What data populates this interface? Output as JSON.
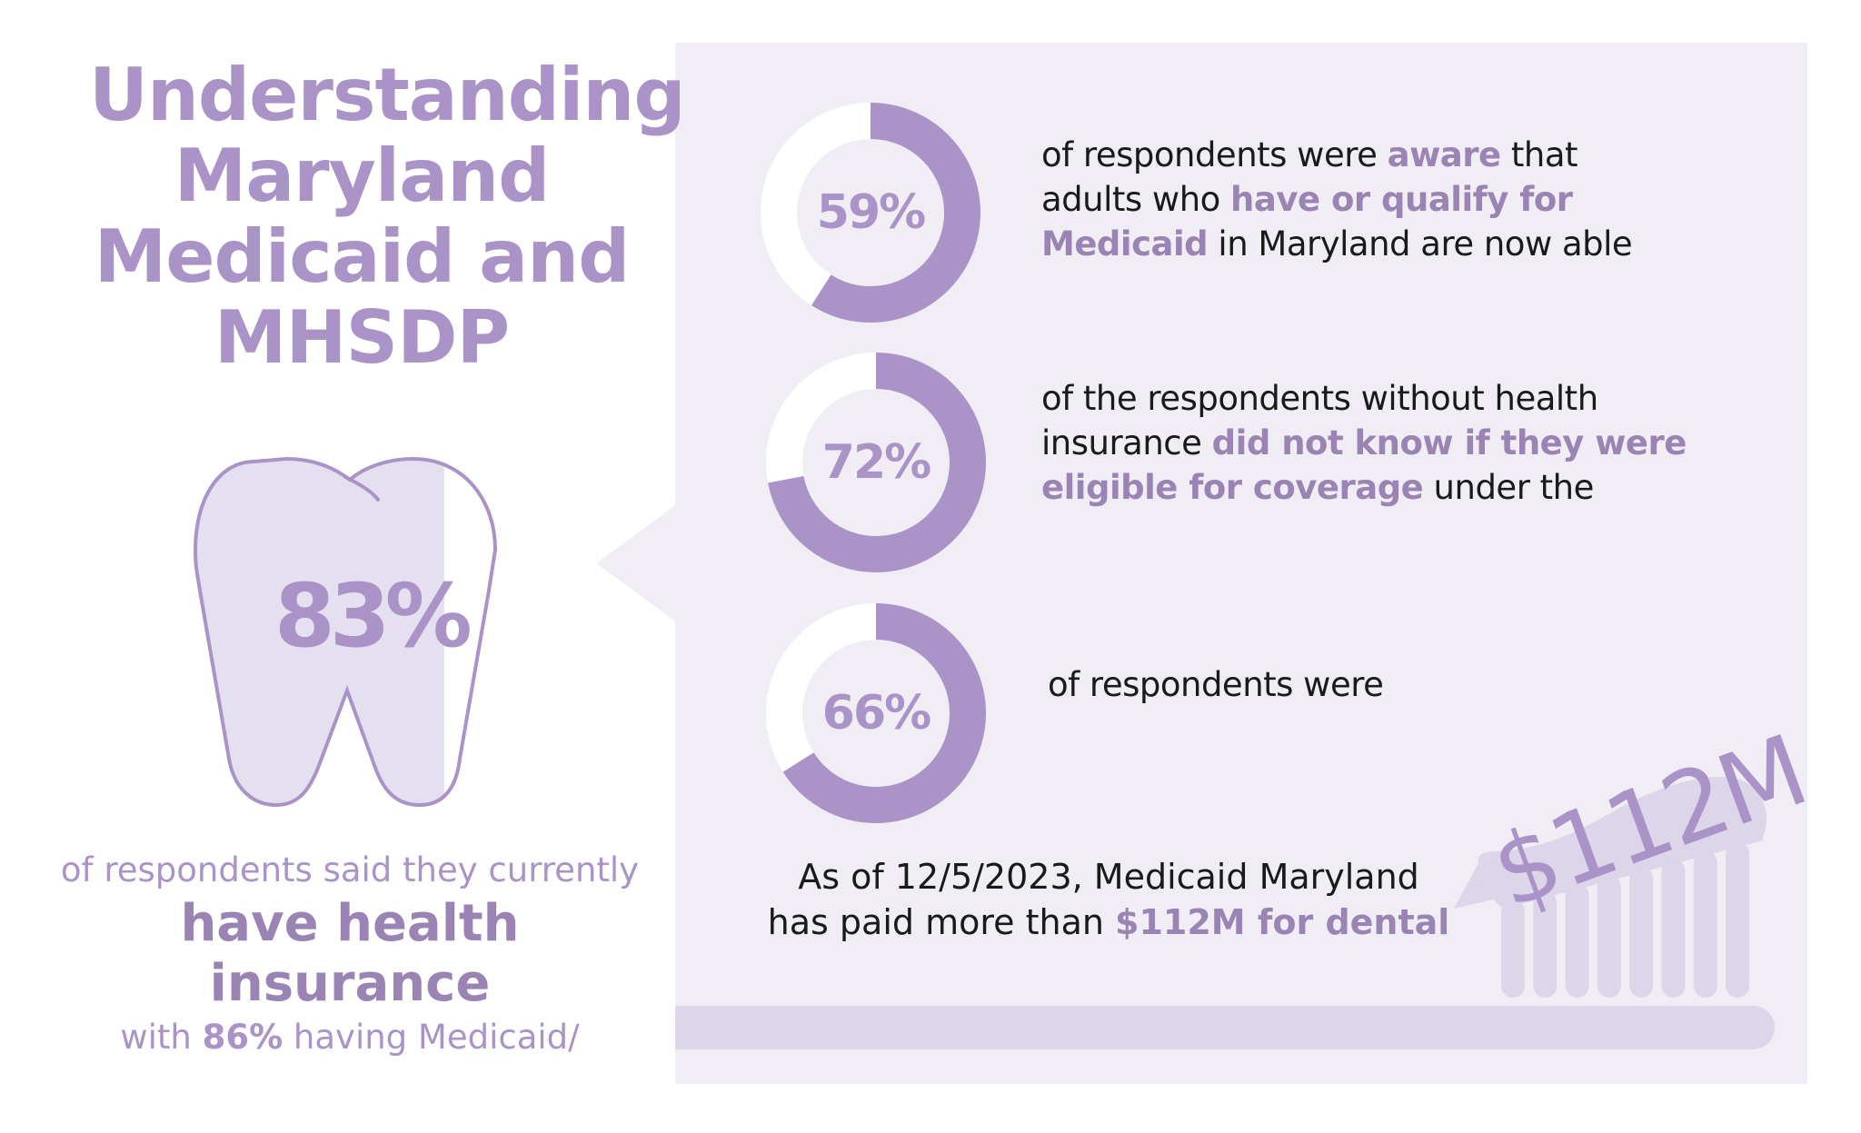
{
  "title": {
    "lines": [
      "Understanding",
      "Maryland",
      "Medicaid and",
      "MHSDP"
    ]
  },
  "colors": {
    "accent": "#a993c7",
    "highlight_text": "#9a84b3",
    "panel": "#f0edf5",
    "tooth_fill": "#e5e0ef",
    "toothbrush": "#ddd5e9"
  },
  "tooth": {
    "icon": "tooth-icon",
    "percent_label": "83%",
    "fill_fraction": 0.83,
    "caption": {
      "line1": "of respondents said they currently",
      "line2": "have health insurance",
      "line3_pre": "with ",
      "line3_bold": "86%",
      "line3_post": " having Medicaid/"
    }
  },
  "stats": [
    {
      "percent_label": "59%",
      "value": 59,
      "lines": [
        [
          {
            "t": "of respondents were ",
            "b": false
          },
          {
            "t": "aware",
            "b": true
          },
          {
            "t": " that",
            "b": false
          }
        ],
        [
          {
            "t": "adults who ",
            "b": false
          },
          {
            "t": "have or qualify for",
            "b": true
          }
        ],
        [
          {
            "t": "Medicaid",
            "b": true
          },
          {
            "t": " in Maryland are now able",
            "b": false
          }
        ]
      ]
    },
    {
      "percent_label": "72%",
      "value": 72,
      "lines": [
        [
          {
            "t": "of the respondents without health",
            "b": false
          }
        ],
        [
          {
            "t": "insurance ",
            "b": false
          },
          {
            "t": "did not know if they were",
            "b": true
          }
        ],
        [
          {
            "t": "eligible for coverage",
            "b": true
          },
          {
            "t": " under the",
            "b": false
          }
        ]
      ]
    },
    {
      "percent_label": "66%",
      "value": 66,
      "lines": [
        [
          {
            "t": "of respondents were",
            "b": false
          }
        ]
      ]
    }
  ],
  "dental": {
    "line1": "As of 12/5/2023, Medicaid Maryland",
    "line2_pre": "has paid more than ",
    "line2_bold": "$112M for dental"
  },
  "toothbrush": {
    "icon": "toothbrush-icon",
    "amount_label": "$112M"
  }
}
